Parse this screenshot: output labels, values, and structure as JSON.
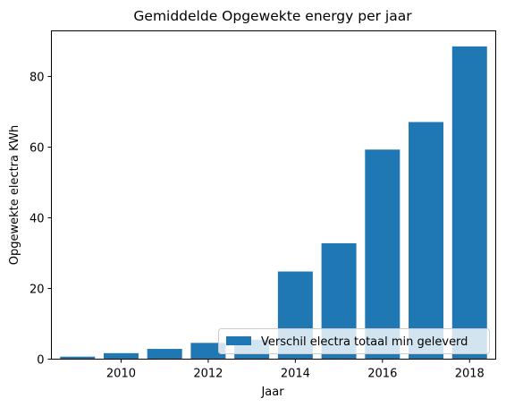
{
  "chart_data": {
    "type": "bar",
    "title": "Gemiddelde Opgewekte energy per jaar",
    "xlabel": "Jaar",
    "ylabel": "Opgewekte electra KWh",
    "x": [
      2009,
      2010,
      2011,
      2012,
      2013,
      2014,
      2015,
      2016,
      2017,
      2018
    ],
    "series": [
      {
        "name": "Verschil electra totaal min geleverd",
        "values": [
          0.7,
          1.7,
          2.9,
          4.6,
          5.5,
          24.8,
          32.8,
          59.3,
          67.1,
          88.5
        ],
        "color": "#1f77b4"
      }
    ],
    "xlim": [
      2008.4,
      2018.6
    ],
    "ylim": [
      0,
      92.9
    ],
    "xticks": [
      2010,
      2012,
      2014,
      2016,
      2018
    ],
    "yticks": [
      0,
      20,
      40,
      60,
      80
    ],
    "grid": false,
    "legend_position": "lower-right"
  }
}
